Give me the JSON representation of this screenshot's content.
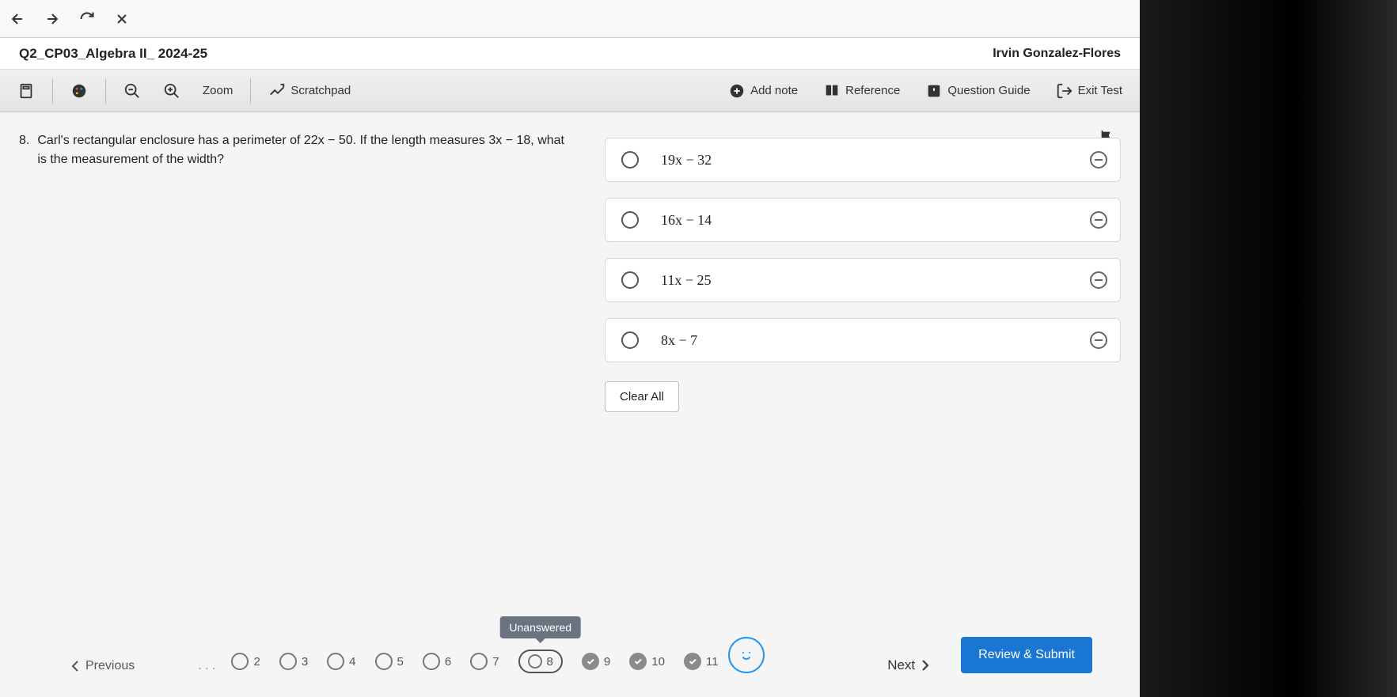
{
  "browser": {},
  "header": {
    "title": "Q2_CP03_Algebra II_ 2024-25",
    "user": "Irvin Gonzalez-Flores"
  },
  "toolbar": {
    "zoom_label": "Zoom",
    "scratchpad_label": "Scratchpad",
    "add_note_label": "Add note",
    "reference_label": "Reference",
    "question_guide_label": "Question Guide",
    "exit_test_label": "Exit Test"
  },
  "question": {
    "number": "8.",
    "text": "Carl's rectangular enclosure has a perimeter of 22x − 50. If the length measures 3x − 18, what is the measurement of the width?",
    "answers": [
      {
        "text": "19x − 32"
      },
      {
        "text": "16x − 14"
      },
      {
        "text": "11x − 25"
      },
      {
        "text": "8x − 7"
      }
    ],
    "clear_all_label": "Clear All"
  },
  "nav": {
    "previous_label": "Previous",
    "next_label": "Next",
    "review_label": "Review & Submit",
    "tooltip": "Unanswered",
    "items": [
      {
        "num": "2",
        "status": "unanswered"
      },
      {
        "num": "3",
        "status": "unanswered"
      },
      {
        "num": "4",
        "status": "unanswered"
      },
      {
        "num": "5",
        "status": "unanswered"
      },
      {
        "num": "6",
        "status": "unanswered"
      },
      {
        "num": "7",
        "status": "unanswered"
      },
      {
        "num": "8",
        "status": "current"
      },
      {
        "num": "9",
        "status": "answered"
      },
      {
        "num": "10",
        "status": "answered"
      },
      {
        "num": "11",
        "status": "answered"
      }
    ]
  },
  "colors": {
    "primary": "#1976d2",
    "toolbar_bg": "#e8e8e8",
    "tooltip_bg": "#6b7280"
  }
}
